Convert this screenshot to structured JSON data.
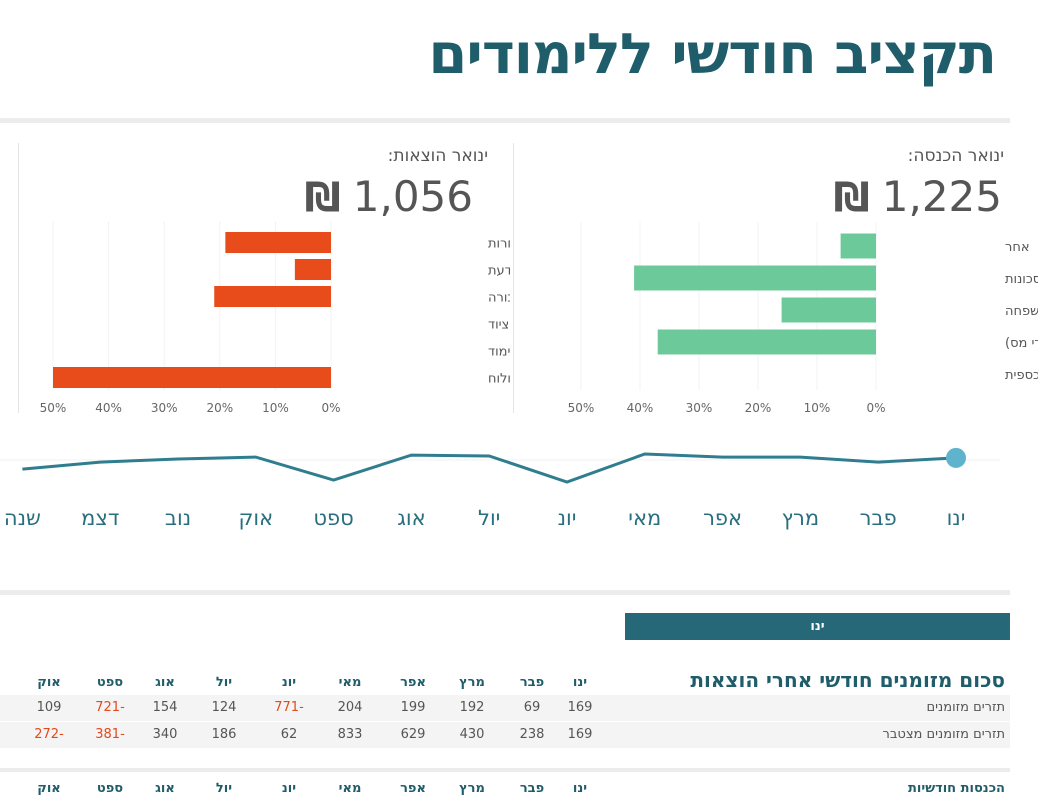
{
  "title": "תקציב חודשי ללימודים",
  "expenses_panel": {
    "label": "ינואר הוצאות:",
    "amount": "1,056",
    "currency": "₪",
    "bar_color": "#e84c1a",
    "chart_data": {
      "type": "bar",
      "orientation": "horizontal",
      "categories": [
        "הוצאות אחרות",
        "הוצאות לפי שיקול דעת",
        "תחבורה",
        "ספרים וציוד",
        "שכר לימוד",
        "חדר ולוח"
      ],
      "values": [
        19,
        6.5,
        21,
        0,
        0,
        50
      ],
      "ticks": [
        "0%",
        "10%",
        "20%",
        "30%",
        "40%",
        "50%"
      ],
      "xlim": [
        0,
        50
      ],
      "unit": "%"
    }
  },
  "income_panel": {
    "label": "ינואר הכנסה:",
    "amount": "1,225",
    "currency": "₪",
    "bar_color": "#6cc99a",
    "chart_data": {
      "type": "bar",
      "orientation": "horizontal",
      "categories": [
        "אחר",
        "מחסכונות",
        "עזרה מבני משפחה",
        "שכר (אחרי מס)",
        "עזרה כספית"
      ],
      "values": [
        6,
        41,
        16,
        37,
        0
      ],
      "ticks": [
        "0%",
        "10%",
        "20%",
        "30%",
        "40%",
        "50%"
      ],
      "xlim": [
        0,
        50
      ],
      "unit": "%"
    }
  },
  "trend": {
    "line_color": "#2f7d8f",
    "selected_month": "ינו",
    "chart_data": {
      "type": "line",
      "categories": [
        "ינו",
        "פבר",
        "מרץ",
        "אפר",
        "מאי",
        "יונ",
        "יול",
        "אוג",
        "ספט",
        "אוק",
        "נוב",
        "דצמ",
        "שנה"
      ],
      "values": [
        86,
        71,
        89,
        89,
        100,
        0,
        93,
        96,
        7,
        89,
        82,
        71,
        46
      ]
    }
  },
  "month_selector": {
    "label": "ינו"
  },
  "summary_table": {
    "title": "סכום מזומנים חודשי אחרי הוצאות",
    "columns": [
      "ינו",
      "פבר",
      "מרץ",
      "אפר",
      "מאי",
      "יונ",
      "יול",
      "אוג",
      "ספט",
      "אוק"
    ],
    "rows": [
      {
        "label": "תזרים מזומנים",
        "values": [
          "169",
          "69",
          "192",
          "199",
          "204",
          "-771",
          "124",
          "154",
          "-721",
          "109"
        ]
      },
      {
        "label": "תזרים מזומנים מצטבר",
        "values": [
          "169",
          "238",
          "430",
          "629",
          "833",
          "62",
          "186",
          "340",
          "-381",
          "-272"
        ]
      }
    ],
    "negative_color": "#e24a1a"
  },
  "income_table": {
    "title": "הכנסות חודשיות",
    "columns": [
      "ינו",
      "פבר",
      "מרץ",
      "אפר",
      "מאי",
      "יונ",
      "יול",
      "אוג",
      "ספט",
      "אוק"
    ]
  }
}
